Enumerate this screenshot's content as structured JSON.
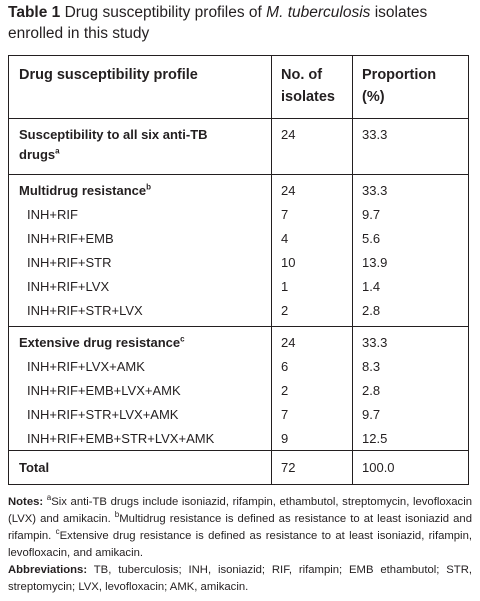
{
  "caption": {
    "label": "Table 1",
    "text_before": "Drug susceptibility profiles of ",
    "organism": "M. tuberculosis",
    "text_after": " isolates enrolled in this study"
  },
  "columns": {
    "profile": "Drug susceptibility profile",
    "isolates_line1": "No. of",
    "isolates_line2": "isolates",
    "proportion_line1": "Proportion",
    "proportion_line2": "(%)"
  },
  "groups": [
    {
      "heading_line1": "Susceptibility to all six anti-TB",
      "heading_line2": "drugs",
      "footnote": "a",
      "isolates": "24",
      "proportion": "33.3",
      "rows": []
    },
    {
      "heading_line1": "Multidrug resistance",
      "footnote": "b",
      "isolates": "24",
      "proportion": "33.3",
      "rows": [
        {
          "profile": "INH+RIF",
          "isolates": "7",
          "proportion": "9.7"
        },
        {
          "profile": "INH+RIF+EMB",
          "isolates": "4",
          "proportion": "5.6"
        },
        {
          "profile": "INH+RIF+STR",
          "isolates": "10",
          "proportion": "13.9"
        },
        {
          "profile": "INH+RIF+LVX",
          "isolates": "1",
          "proportion": "1.4"
        },
        {
          "profile": "INH+RIF+STR+LVX",
          "isolates": "2",
          "proportion": "2.8"
        }
      ]
    },
    {
      "heading_line1": "Extensive drug resistance",
      "footnote": "c",
      "isolates": "24",
      "proportion": "33.3",
      "rows": [
        {
          "profile": "INH+RIF+LVX+AMK",
          "isolates": "6",
          "proportion": "8.3"
        },
        {
          "profile": "INH+RIF+EMB+LVX+AMK",
          "isolates": "2",
          "proportion": "2.8"
        },
        {
          "profile": "INH+RIF+STR+LVX+AMK",
          "isolates": "7",
          "proportion": "9.7"
        },
        {
          "profile": "INH+RIF+EMB+STR+LVX+AMK",
          "isolates": "9",
          "proportion": "12.5"
        }
      ]
    }
  ],
  "total": {
    "label": "Total",
    "isolates": "72",
    "proportion": "100.0"
  },
  "notes": {
    "label": "Notes:",
    "a_mark": "a",
    "a_text": "Six anti-TB drugs include isoniazid, rifampin, ethambutol, streptomycin, levofloxacin (LVX) and amikacin. ",
    "b_mark": "b",
    "b_text": "Multidrug resistance is defined as resistance to at least isoniazid and rifampin. ",
    "c_mark": "c",
    "c_text": "Extensive drug resistance is defined as resistance to at least isoniazid, rifampin, levofloxacin, and amikacin."
  },
  "abbreviations": {
    "label": "Abbreviations:",
    "text": "TB, tuberculosis; INH, isoniazid; RIF, rifampin; EMB ethambutol; STR, streptomycin; LVX, levofloxacin; AMK, amikacin."
  }
}
